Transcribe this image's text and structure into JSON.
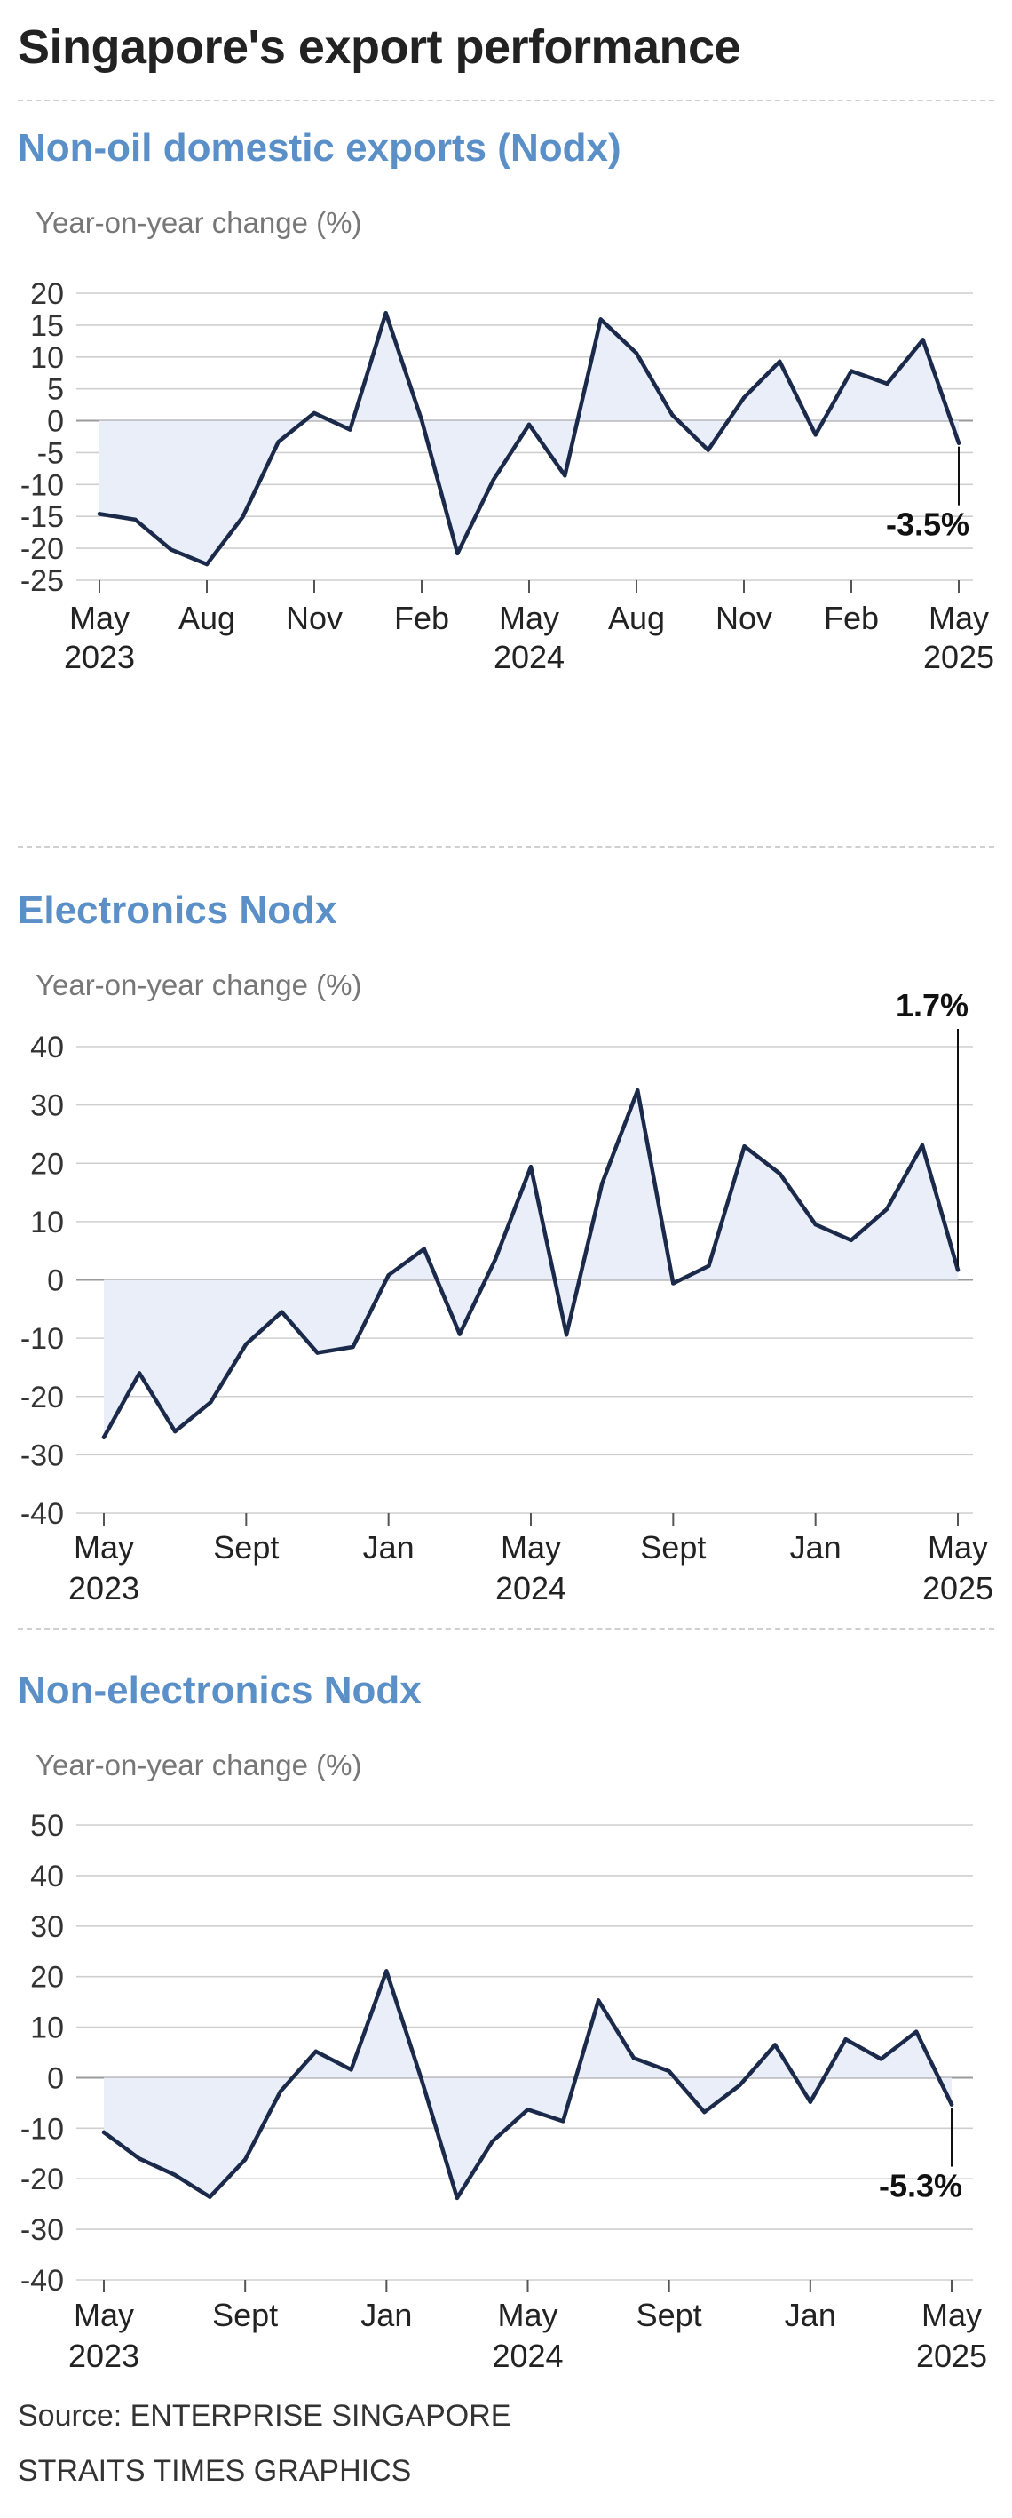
{
  "title": "Singapore's export performance",
  "colors": {
    "title": "#222222",
    "chart_title": "#5a8fc8",
    "line": "#1b2a4a",
    "fill": "#e9eef9",
    "grid": "#cfcfcf",
    "zero_line": "#9a9a9a"
  },
  "chart_data": [
    {
      "type": "area",
      "title": "Non-oil domestic exports (Nodx)",
      "ylabel": "Year-on-year change (%)",
      "ylim": [
        -25,
        20
      ],
      "yticks": [
        20,
        15,
        10,
        5,
        0,
        -5,
        -10,
        -15,
        -20,
        -25
      ],
      "ytick_labels": [
        "20",
        "15",
        "10",
        "5",
        "0",
        "-5",
        "-10",
        "-15",
        "-20",
        "-25"
      ],
      "x_months": [
        "2023-05",
        "2023-06",
        "2023-07",
        "2023-08",
        "2023-09",
        "2023-10",
        "2023-11",
        "2023-12",
        "2024-01",
        "2024-02",
        "2024-03",
        "2024-04",
        "2024-05",
        "2024-06",
        "2024-07",
        "2024-08",
        "2024-09",
        "2024-10",
        "2024-11",
        "2024-12",
        "2025-01",
        "2025-02",
        "2025-03",
        "2025-04",
        "2025-05"
      ],
      "values": [
        -14.6,
        -15.5,
        -20.2,
        -22.5,
        -15.1,
        -3.3,
        1.2,
        -1.4,
        16.9,
        0.1,
        -20.8,
        -9.3,
        -0.6,
        -8.6,
        15.9,
        10.6,
        0.9,
        -4.6,
        3.6,
        9.3,
        -2.2,
        7.8,
        5.8,
        12.7,
        -3.5
      ],
      "xticks": [
        {
          "index": 0,
          "label": "May",
          "sub": "2023"
        },
        {
          "index": 3,
          "label": "Aug",
          "sub": ""
        },
        {
          "index": 6,
          "label": "Nov",
          "sub": ""
        },
        {
          "index": 9,
          "label": "Feb",
          "sub": ""
        },
        {
          "index": 12,
          "label": "May",
          "sub": "2024"
        },
        {
          "index": 15,
          "label": "Aug",
          "sub": ""
        },
        {
          "index": 18,
          "label": "Nov",
          "sub": ""
        },
        {
          "index": 21,
          "label": "Feb",
          "sub": ""
        },
        {
          "index": 24,
          "label": "May",
          "sub": "2025"
        }
      ],
      "annotation": {
        "index": 24,
        "label": "-3.5%",
        "position": "below"
      },
      "grid": true
    },
    {
      "type": "area",
      "title": "Electronics Nodx",
      "ylabel": "Year-on-year change (%)",
      "ylim": [
        -40,
        40
      ],
      "yticks": [
        40,
        30,
        20,
        10,
        0,
        -10,
        -20,
        -30,
        -40
      ],
      "ytick_labels": [
        "40",
        "30",
        "20",
        "10",
        "0",
        "-10",
        "-20",
        "-30",
        "-40"
      ],
      "x_months": [
        "2023-05",
        "2023-06",
        "2023-07",
        "2023-08",
        "2023-09",
        "2023-10",
        "2023-11",
        "2023-12",
        "2024-01",
        "2024-02",
        "2024-03",
        "2024-04",
        "2024-05",
        "2024-06",
        "2024-07",
        "2024-08",
        "2024-09",
        "2024-10",
        "2024-11",
        "2024-12",
        "2025-01",
        "2025-02",
        "2025-03",
        "2025-04",
        "2025-05"
      ],
      "values": [
        -27,
        -16,
        -26,
        -21,
        -11,
        -5.5,
        -12.5,
        -11.5,
        0.8,
        5.3,
        -9.3,
        3.5,
        19.4,
        -9.4,
        16.5,
        32.5,
        -0.6,
        2.4,
        22.9,
        18.2,
        9.5,
        6.8,
        12.1,
        23.1,
        1.7
      ],
      "xticks": [
        {
          "index": 0,
          "label": "May",
          "sub": "2023"
        },
        {
          "index": 4,
          "label": "Sept",
          "sub": ""
        },
        {
          "index": 8,
          "label": "Jan",
          "sub": ""
        },
        {
          "index": 12,
          "label": "May",
          "sub": "2024"
        },
        {
          "index": 16,
          "label": "Sept",
          "sub": ""
        },
        {
          "index": 20,
          "label": "Jan",
          "sub": ""
        },
        {
          "index": 24,
          "label": "May",
          "sub": "2025"
        }
      ],
      "annotation": {
        "index": 24,
        "label": "1.7%",
        "position": "above"
      },
      "grid": true
    },
    {
      "type": "area",
      "title": "Non-electronics Nodx",
      "ylabel": "Year-on-year change (%)",
      "ylim": [
        -40,
        50
      ],
      "yticks": [
        50,
        40,
        30,
        20,
        10,
        0,
        -10,
        -20,
        -30,
        -40
      ],
      "ytick_labels": [
        "50",
        "40",
        "30",
        "20",
        "10",
        "0",
        "-10",
        "-20",
        "-30",
        "-40"
      ],
      "x_months": [
        "2023-05",
        "2023-06",
        "2023-07",
        "2023-08",
        "2023-09",
        "2023-10",
        "2023-11",
        "2023-12",
        "2024-01",
        "2024-02",
        "2024-03",
        "2024-04",
        "2024-05",
        "2024-06",
        "2024-07",
        "2024-08",
        "2024-09",
        "2024-10",
        "2024-11",
        "2024-12",
        "2025-01",
        "2025-02",
        "2025-03",
        "2025-04",
        "2025-05"
      ],
      "values": [
        -10.8,
        -16,
        -19.2,
        -23.6,
        -16.2,
        -2.7,
        5.2,
        1.6,
        21.1,
        -0.5,
        -23.8,
        -12.6,
        -6.3,
        -8.6,
        15.3,
        3.9,
        1.3,
        -6.8,
        -1.5,
        6.5,
        -4.8,
        7.6,
        3.7,
        9.1,
        -5.3
      ],
      "xticks": [
        {
          "index": 0,
          "label": "May",
          "sub": "2023"
        },
        {
          "index": 4,
          "label": "Sept",
          "sub": ""
        },
        {
          "index": 8,
          "label": "Jan",
          "sub": ""
        },
        {
          "index": 12,
          "label": "May",
          "sub": "2024"
        },
        {
          "index": 16,
          "label": "Sept",
          "sub": ""
        },
        {
          "index": 20,
          "label": "Jan",
          "sub": ""
        },
        {
          "index": 24,
          "label": "May",
          "sub": "2025"
        }
      ],
      "annotation": {
        "index": 24,
        "label": "-5.3%",
        "position": "below"
      },
      "grid": true
    }
  ],
  "footer": {
    "source": "Source: ENTERPRISE SINGAPORE",
    "credit": "STRAITS TIMES GRAPHICS"
  }
}
